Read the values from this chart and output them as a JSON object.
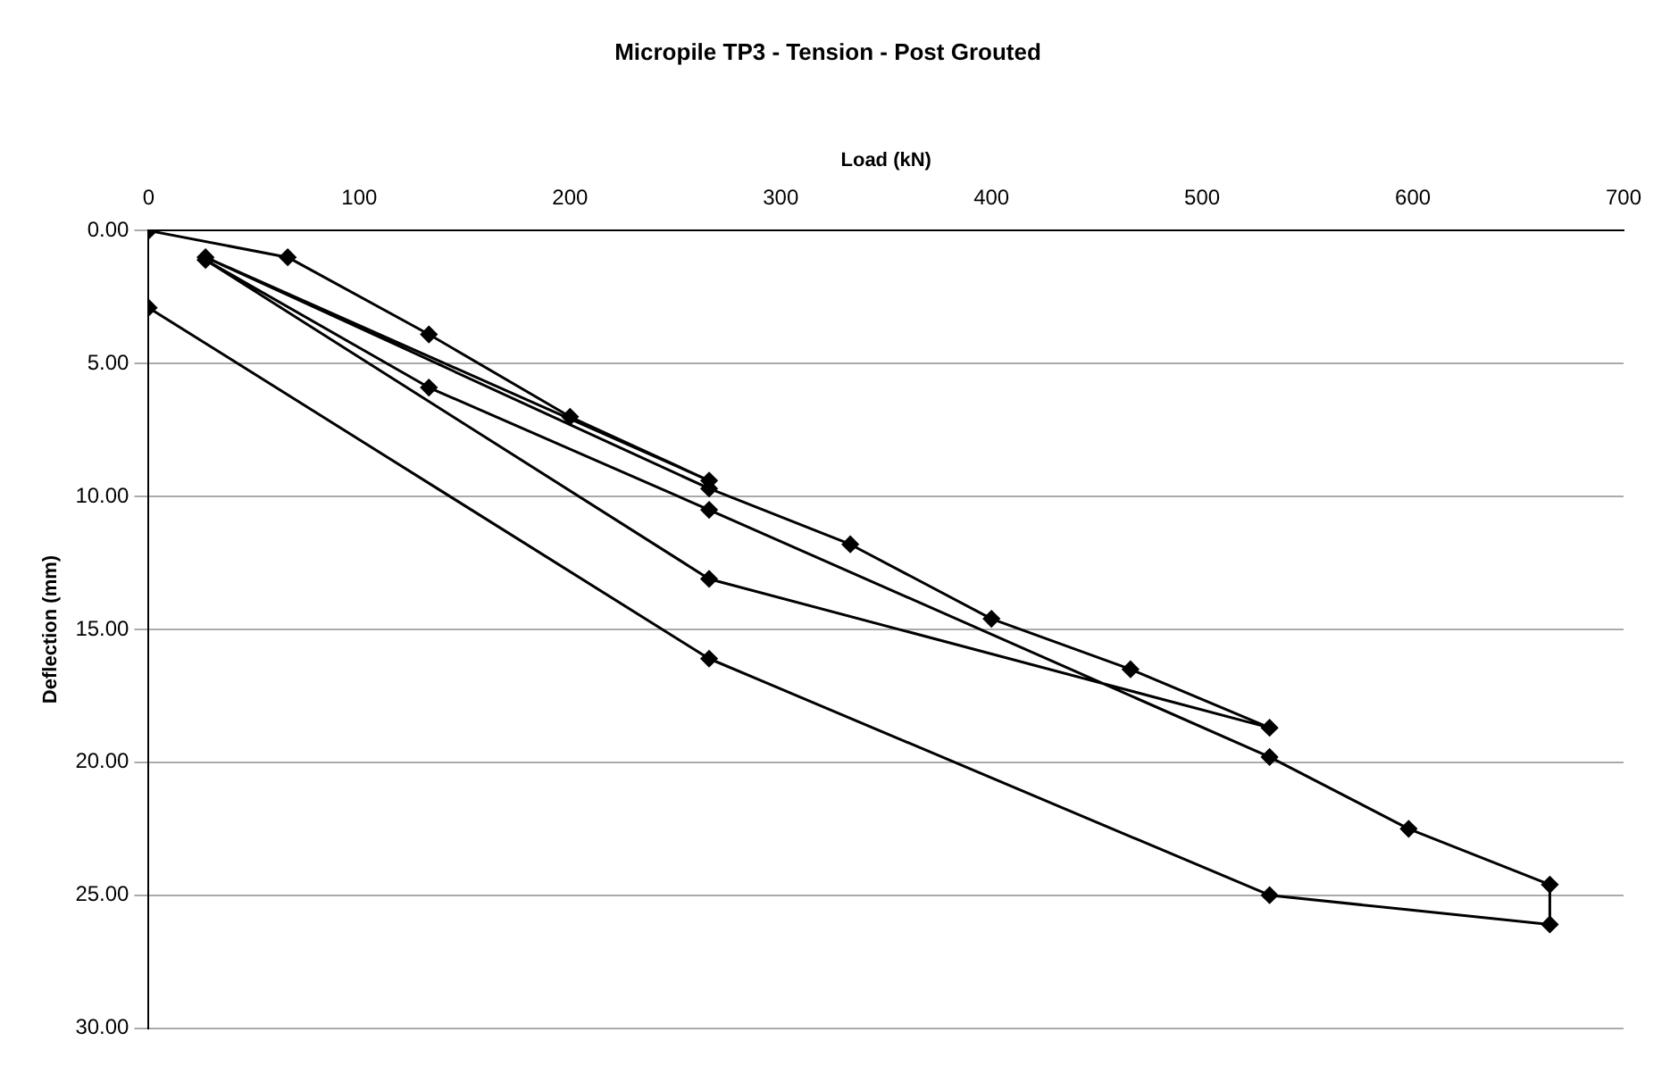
{
  "chart_data": {
    "type": "line",
    "title": "Micropile TP3 - Tension - Post Grouted",
    "xlabel": "Load (kN)",
    "ylabel": "Deflection (mm)",
    "x": [
      0,
      66,
      133,
      200,
      266,
      27,
      266,
      333,
      400,
      466,
      532,
      266,
      27,
      133,
      266,
      532,
      598,
      665,
      665,
      532,
      266,
      0
    ],
    "series": [
      {
        "color": "#000000",
        "values": [
          0,
          1.0,
          3.9,
          7.0,
          9.4,
          1.0,
          9.7,
          11.8,
          14.6,
          16.5,
          18.7,
          13.1,
          1.1,
          5.9,
          10.5,
          19.8,
          22.5,
          24.6,
          26.1,
          25.0,
          16.1,
          2.9
        ]
      }
    ],
    "xlim": [
      0,
      700
    ],
    "xticks": [
      0,
      100,
      200,
      300,
      400,
      500,
      600,
      700
    ],
    "ylim": [
      30,
      0
    ],
    "yticks": [
      {
        "value": 0,
        "label": "0.00"
      },
      {
        "value": 5,
        "label": "5.00"
      },
      {
        "value": 10,
        "label": "10.00"
      },
      {
        "value": 15,
        "label": "15.00"
      },
      {
        "value": 20,
        "label": "20.00"
      },
      {
        "value": 25,
        "label": "25.00"
      },
      {
        "value": 30,
        "label": "30.00"
      }
    ],
    "grid": "y",
    "marker": "diamond",
    "line_style": "solid",
    "legend": false
  }
}
